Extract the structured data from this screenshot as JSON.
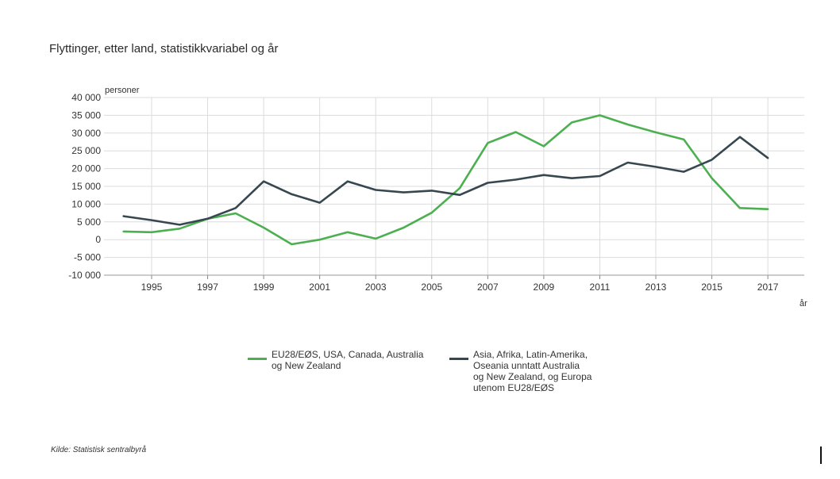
{
  "chart_data": {
    "type": "line",
    "title": "Flyttinger, etter land, statistikkvariabel og år",
    "ylabel": "personer",
    "xlabel": "år",
    "x": [
      1994,
      1995,
      1996,
      1997,
      1998,
      1999,
      2000,
      2001,
      2002,
      2003,
      2004,
      2005,
      2006,
      2007,
      2008,
      2009,
      2010,
      2011,
      2012,
      2013,
      2014,
      2015,
      2016,
      2017
    ],
    "x_ticks": [
      "1995",
      "1997",
      "1999",
      "2001",
      "2003",
      "2005",
      "2007",
      "2009",
      "2011",
      "2013",
      "2015",
      "2017"
    ],
    "y_ticks": [
      "40 000",
      "35 000",
      "30 000",
      "25 000",
      "20 000",
      "15 000",
      "10 000",
      "5 000",
      "0",
      "-5 000",
      "-10 000"
    ],
    "ylim": [
      -10000,
      40000
    ],
    "grid": true,
    "legend_position": "bottom",
    "series": [
      {
        "name": "EU28/EØS, USA, Canada, Australia\nog New Zealand",
        "color": "#4caf50",
        "values": [
          2300,
          2100,
          3100,
          5900,
          7400,
          3400,
          -1300,
          0,
          2100,
          300,
          3400,
          7600,
          14500,
          27200,
          30300,
          26300,
          33000,
          35000,
          32400,
          30200,
          28200,
          17300,
          8900,
          8600
        ]
      },
      {
        "name": "Asia, Afrika, Latin-Amerika,\nOseania unntatt Australia\nog New Zealand, og Europa\nutenom EU28/EØS",
        "color": "#37474f",
        "values": [
          6600,
          5500,
          4200,
          5900,
          8900,
          16400,
          12800,
          10400,
          16400,
          14000,
          13300,
          13800,
          12600,
          16000,
          16900,
          18200,
          17300,
          17900,
          21700,
          20500,
          19100,
          22500,
          28900,
          23000
        ]
      }
    ]
  },
  "source_text": "Kilde:  Statistisk sentralbyrå"
}
